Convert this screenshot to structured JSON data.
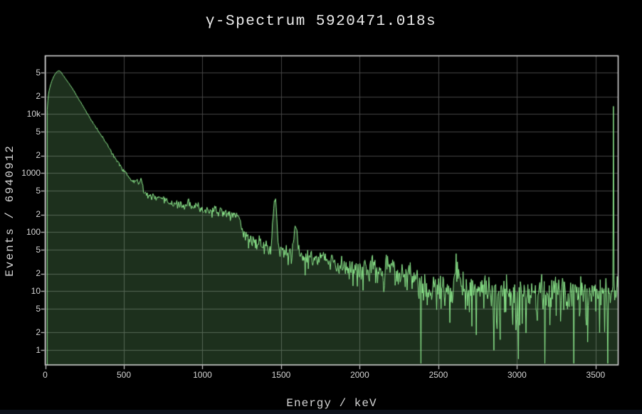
{
  "chart_data": {
    "type": "area",
    "title": "γ-Spectrum 5920471.018s",
    "xlabel": "Energy / keV",
    "ylabel": "Events / 6940912",
    "x_scale": "linear",
    "y_scale": "log",
    "xlim": [
      0,
      3643
    ],
    "ylim_log": [
      0.566,
      98600
    ],
    "grid": true,
    "legend": "none",
    "x_ticks": [
      0,
      500,
      1000,
      1500,
      2000,
      2500,
      3000,
      3500
    ],
    "y_ticks": [
      {
        "v": 1,
        "label": "1"
      },
      {
        "v": 2,
        "label": "2"
      },
      {
        "v": 5,
        "label": "5"
      },
      {
        "v": 10,
        "label": "10"
      },
      {
        "v": 20,
        "label": "2"
      },
      {
        "v": 50,
        "label": "5"
      },
      {
        "v": 100,
        "label": "100"
      },
      {
        "v": 200,
        "label": "2"
      },
      {
        "v": 500,
        "label": "5"
      },
      {
        "v": 1000,
        "label": "1000"
      },
      {
        "v": 2000,
        "label": "2"
      },
      {
        "v": 5000,
        "label": "5"
      },
      {
        "v": 10000,
        "label": "10k"
      },
      {
        "v": 20000,
        "label": "2"
      },
      {
        "v": 50000,
        "label": "5"
      }
    ],
    "colors": {
      "background": "#000000",
      "line": "#90ee90",
      "fill": "rgba(144,238,144,0.2)",
      "grid": "#454545",
      "axis_border": "#dcdcdc",
      "tick_mark": "#cfcfcf",
      "tick_label": "#d4d4d4",
      "title_text": "#ececec"
    },
    "spectrum": {
      "x_start_kev": 13,
      "bin_kev": 4,
      "baseline_points": [
        [
          13,
          12000
        ],
        [
          16,
          16000
        ],
        [
          20,
          21000
        ],
        [
          25,
          25500
        ],
        [
          32,
          30000
        ],
        [
          42,
          36500
        ],
        [
          55,
          44000
        ],
        [
          68,
          50000
        ],
        [
          80,
          53500
        ],
        [
          90,
          54500
        ],
        [
          100,
          51500
        ],
        [
          112,
          46500
        ],
        [
          125,
          41500
        ],
        [
          140,
          36500
        ],
        [
          155,
          32000
        ],
        [
          170,
          28000
        ],
        [
          185,
          24200
        ],
        [
          200,
          20500
        ],
        [
          215,
          17700
        ],
        [
          230,
          15300
        ],
        [
          245,
          13100
        ],
        [
          260,
          11200
        ],
        [
          275,
          9500
        ],
        [
          290,
          8100
        ],
        [
          305,
          7000
        ],
        [
          322,
          6000
        ],
        [
          340,
          5100
        ],
        [
          358,
          4300
        ],
        [
          376,
          3620
        ],
        [
          394,
          3050
        ],
        [
          412,
          2560
        ],
        [
          430,
          2120
        ],
        [
          448,
          1760
        ],
        [
          466,
          1470
        ],
        [
          484,
          1230
        ],
        [
          502,
          1030
        ],
        [
          520,
          905
        ],
        [
          538,
          810
        ],
        [
          556,
          730
        ],
        [
          574,
          655
        ],
        [
          592,
          582
        ],
        [
          610,
          520
        ],
        [
          628,
          472
        ],
        [
          646,
          437
        ],
        [
          664,
          413
        ],
        [
          690,
          392
        ],
        [
          720,
          368
        ],
        [
          755,
          344
        ],
        [
          790,
          322
        ],
        [
          825,
          304
        ],
        [
          860,
          288
        ],
        [
          895,
          274
        ],
        [
          930,
          261
        ],
        [
          965,
          250
        ],
        [
          1000,
          242
        ],
        [
          1040,
          233
        ],
        [
          1080,
          224
        ],
        [
          1120,
          215
        ],
        [
          1160,
          206
        ],
        [
          1200,
          197
        ],
        [
          1228,
          190
        ],
        [
          1240,
          178
        ],
        [
          1248,
          122
        ],
        [
          1258,
          96
        ],
        [
          1272,
          86
        ],
        [
          1295,
          78
        ],
        [
          1325,
          71
        ],
        [
          1360,
          65
        ],
        [
          1395,
          60
        ],
        [
          1430,
          56
        ],
        [
          1465,
          52
        ],
        [
          1500,
          48.5
        ],
        [
          1540,
          45.5
        ],
        [
          1580,
          42.5
        ],
        [
          1620,
          40
        ],
        [
          1665,
          37
        ],
        [
          1710,
          34.5
        ],
        [
          1755,
          32.5
        ],
        [
          1800,
          30.5
        ],
        [
          1850,
          28.6
        ],
        [
          1900,
          27
        ],
        [
          1950,
          25.6
        ],
        [
          2000,
          24.4
        ],
        [
          2060,
          23.3
        ],
        [
          2120,
          22.2
        ],
        [
          2180,
          21.2
        ],
        [
          2240,
          20.2
        ],
        [
          2300,
          19.2
        ],
        [
          2340,
          18.4
        ],
        [
          2360,
          16
        ],
        [
          2382,
          12.4
        ],
        [
          2410,
          11
        ],
        [
          2450,
          10.5
        ],
        [
          2510,
          10.2
        ],
        [
          2580,
          10
        ],
        [
          2660,
          9.8
        ],
        [
          2750,
          9.6
        ],
        [
          2850,
          9.4
        ],
        [
          2950,
          9.4
        ],
        [
          3050,
          9.4
        ],
        [
          3150,
          9.5
        ],
        [
          3250,
          9.7
        ],
        [
          3350,
          9.9
        ],
        [
          3450,
          10.1
        ],
        [
          3550,
          10.3
        ],
        [
          3643,
          10.1
        ]
      ],
      "peaks": [
        {
          "energy": 511,
          "amplitude": 145,
          "sigma": 7
        },
        {
          "energy": 583,
          "amplitude": 165,
          "sigma": 7
        },
        {
          "energy": 609,
          "amplitude": 255,
          "sigma": 7
        },
        {
          "energy": 911,
          "amplitude": 58,
          "sigma": 8
        },
        {
          "energy": 969,
          "amplitude": 42,
          "sigma": 8
        },
        {
          "energy": 1120,
          "amplitude": 26,
          "sigma": 8
        },
        {
          "energy": 1461,
          "amplitude": 298,
          "sigma": 9
        },
        {
          "energy": 1592,
          "amplitude": 80,
          "sigma": 8
        },
        {
          "energy": 1764,
          "amplitude": 11,
          "sigma": 9
        },
        {
          "energy": 2204,
          "amplitude": 8,
          "sigma": 10
        },
        {
          "energy": 2614,
          "amplitude": 20,
          "sigma": 10
        }
      ],
      "overflow_spike": {
        "energy": 3613,
        "value": 13600
      },
      "dips": [
        {
          "energy": 2853,
          "value": 1.0
        }
      ],
      "noise": {
        "model": "poisson",
        "seed": 11,
        "scale": 1.25
      }
    }
  }
}
